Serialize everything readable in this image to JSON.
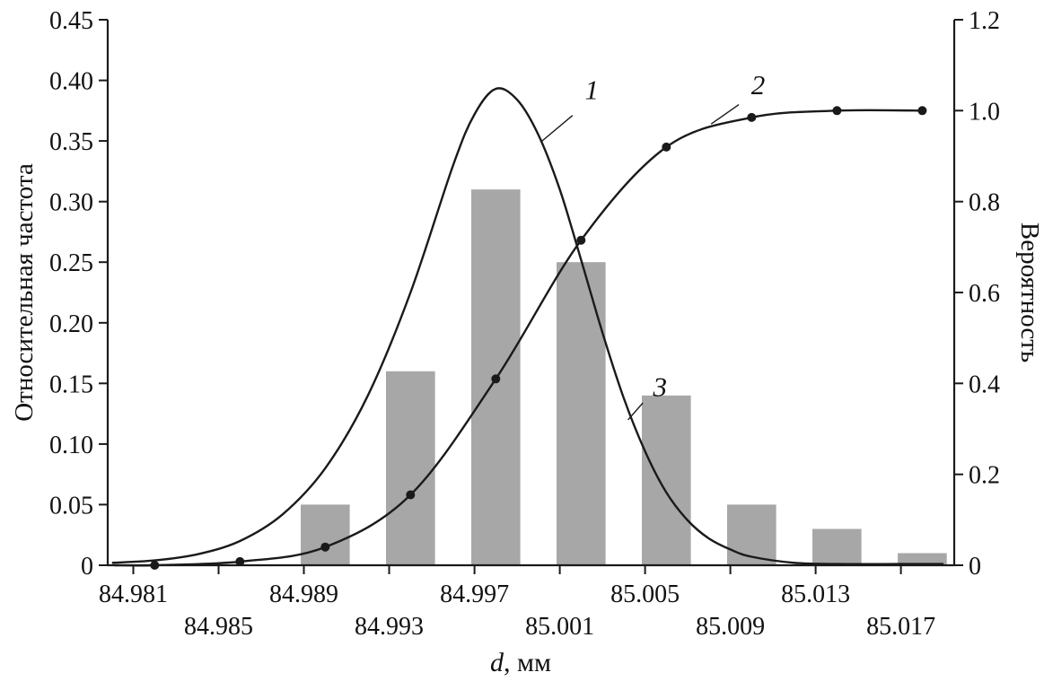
{
  "figure": {
    "x_axis": {
      "title_italic": "d",
      "title_rest": ", мм",
      "tick_labels": [
        "84.981",
        "84.985",
        "84.989",
        "84.993",
        "84.997",
        "85.001",
        "85.005",
        "85.009",
        "85.013",
        "85.017"
      ]
    },
    "y_left_axis": {
      "title": "Относительная частота",
      "tick_labels": [
        "0",
        "0.05",
        "0.10",
        "0.15",
        "0.20",
        "0.25",
        "0.30",
        "0.35",
        "0.40",
        "0.45"
      ]
    },
    "y_right_axis": {
      "title": "Вероятность",
      "tick_labels": [
        "0",
        "0.2",
        "0.4",
        "0.6",
        "0.8",
        "1.0",
        "1.2"
      ]
    }
  },
  "colors": {
    "bar": "#a7a7a7",
    "line": "#1a1a1a",
    "background": "#ffffff",
    "text": "#111111"
  },
  "chart_data": {
    "type": "combo",
    "title": "",
    "xlabel": "d, мм",
    "ylabel_left": "Относительная частота",
    "ylabel_right": "Вероятность",
    "x_range": [
      84.9798,
      85.0195
    ],
    "y_left_range": [
      0,
      0.45
    ],
    "y_right_range": [
      0,
      1.2
    ],
    "x_tick_values": [
      84.981,
      84.985,
      84.989,
      84.993,
      84.997,
      85.001,
      85.005,
      85.009,
      85.013,
      85.017
    ],
    "y_left_tick_values": [
      0,
      0.05,
      0.1,
      0.15,
      0.2,
      0.25,
      0.3,
      0.35,
      0.4,
      0.45
    ],
    "y_right_tick_values": [
      0,
      0.2,
      0.4,
      0.6,
      0.8,
      1.0,
      1.2
    ],
    "grid": false,
    "legend": "numbered curve labels 1, 2, 3 with leader lines",
    "series": [
      {
        "name": "1",
        "label": "1",
        "type": "line",
        "axis": "left",
        "description": "normal density curve of relative frequency",
        "points": [
          [
            84.98,
            0.002
          ],
          [
            84.982,
            0.004
          ],
          [
            84.984,
            0.009
          ],
          [
            84.986,
            0.02
          ],
          [
            84.988,
            0.042
          ],
          [
            84.99,
            0.08
          ],
          [
            84.992,
            0.14
          ],
          [
            84.994,
            0.225
          ],
          [
            84.996,
            0.33
          ],
          [
            84.997,
            0.372
          ],
          [
            84.998,
            0.393
          ],
          [
            84.999,
            0.384
          ],
          [
            85.0,
            0.355
          ],
          [
            85.001,
            0.31
          ],
          [
            85.002,
            0.252
          ],
          [
            85.003,
            0.192
          ],
          [
            85.004,
            0.138
          ],
          [
            85.005,
            0.094
          ],
          [
            85.006,
            0.06
          ],
          [
            85.007,
            0.037
          ],
          [
            85.008,
            0.022
          ],
          [
            85.009,
            0.013
          ],
          [
            85.01,
            0.007
          ],
          [
            85.012,
            0.002
          ],
          [
            85.014,
            0.001
          ],
          [
            85.017,
            0.001
          ],
          [
            85.019,
            0.001
          ]
        ]
      },
      {
        "name": "2",
        "label": "2",
        "type": "line",
        "axis": "right",
        "markers": true,
        "description": "cumulative probability curve",
        "points": [
          [
            84.982,
            0.0
          ],
          [
            84.986,
            0.008
          ],
          [
            84.99,
            0.04
          ],
          [
            84.994,
            0.155
          ],
          [
            84.998,
            0.41
          ],
          [
            85.002,
            0.715
          ],
          [
            85.006,
            0.92
          ],
          [
            85.01,
            0.985
          ],
          [
            85.014,
            1.0
          ],
          [
            85.018,
            1.0
          ]
        ]
      },
      {
        "name": "3",
        "label": "3",
        "type": "bar",
        "axis": "left",
        "description": "relative frequency histogram",
        "centers": [
          84.99,
          84.994,
          84.998,
          85.002,
          85.006,
          85.01,
          85.014,
          85.018
        ],
        "values": [
          0.05,
          0.16,
          0.31,
          0.25,
          0.14,
          0.05,
          0.03,
          0.01
        ],
        "bar_width": 0.0023
      }
    ],
    "annotations": [
      {
        "text": "1",
        "x": 85.0025,
        "y": 0.392,
        "leader": [
          85.0016,
          0.371,
          85.0001,
          0.349
        ]
      },
      {
        "text": "2",
        "x": 85.0103,
        "y": 0.396,
        "leader": [
          85.0094,
          0.38,
          85.0081,
          0.364
        ]
      },
      {
        "text": "3",
        "x": 85.0057,
        "y": 0.147,
        "leader": [
          85.0049,
          0.134,
          85.0042,
          0.12
        ]
      }
    ]
  }
}
